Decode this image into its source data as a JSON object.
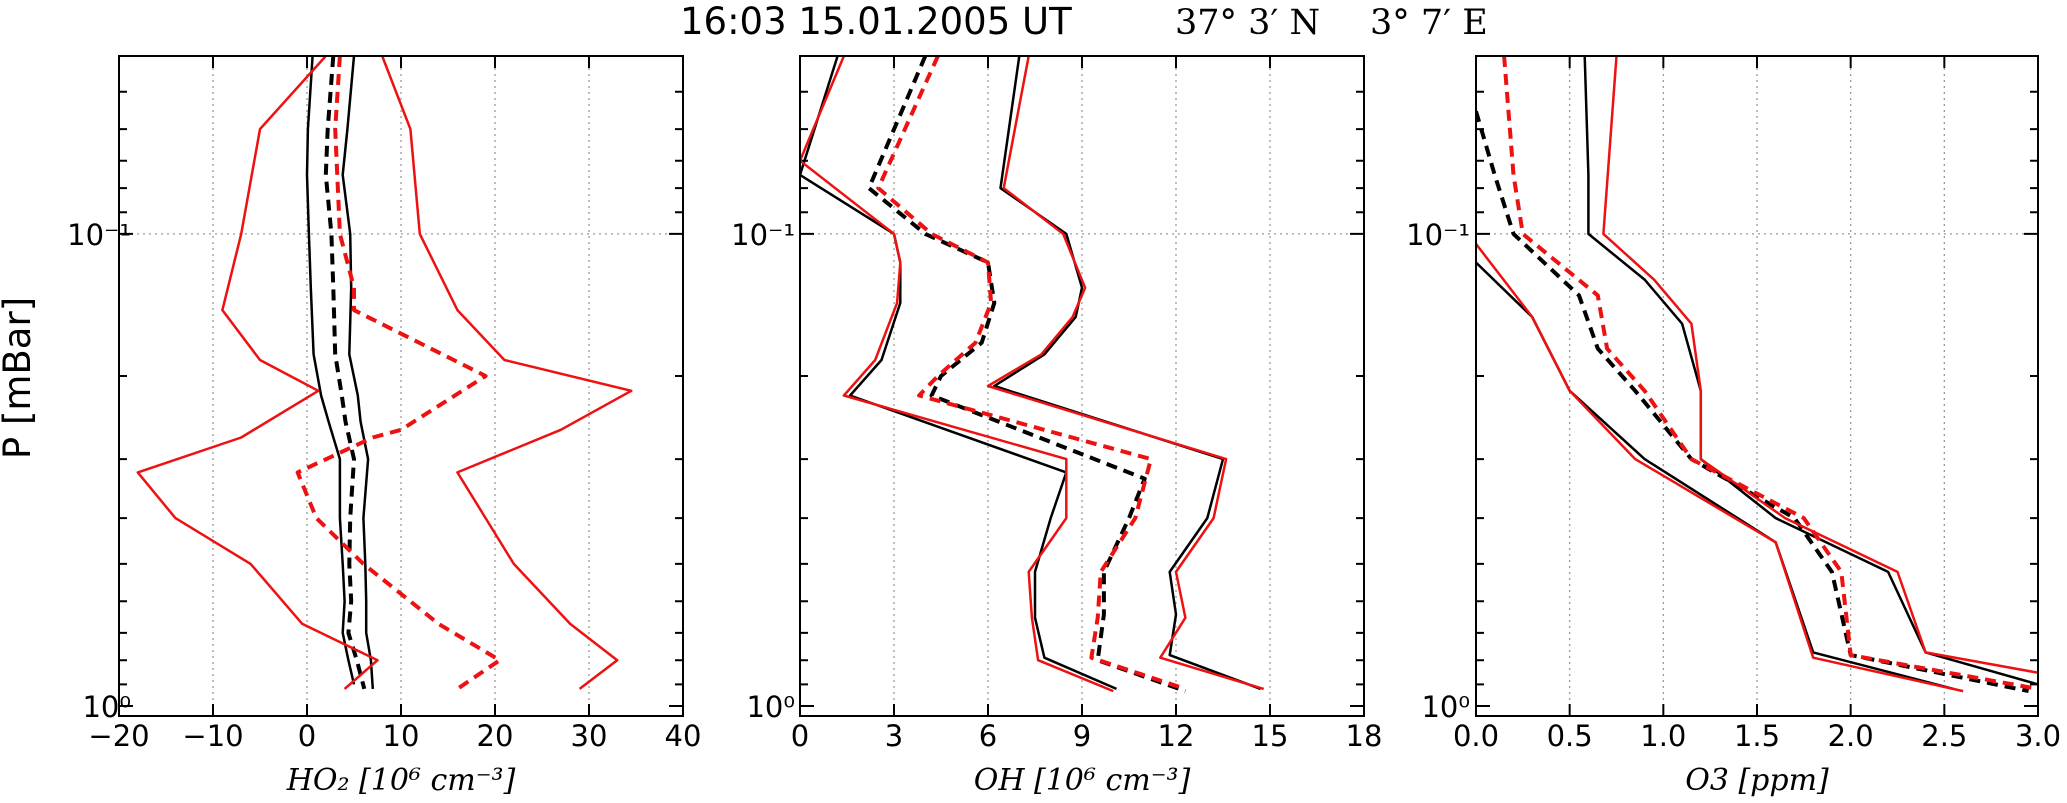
{
  "figure": {
    "title_text": "16:03 15.01.2005 UT",
    "title_lat": "37° 3′ N",
    "title_lon": "3° 7′ E",
    "ylabel": "P [mBar]"
  },
  "colors": {
    "model_a": "#000000",
    "model_b": "#ee1111"
  },
  "chart_data": [
    {
      "type": "line",
      "panel": "HO2",
      "xlabel": "HO₂  [10⁶ cm⁻³]",
      "xlim": [
        -20,
        40
      ],
      "x_ticks": [
        -20,
        -10,
        0,
        10,
        20,
        30,
        40
      ],
      "ylim": [
        1.05,
        0.042
      ],
      "y_scale": "log",
      "y_tick_labels": [
        "10⁻¹",
        "10⁰"
      ],
      "grid": true,
      "series": [
        {
          "color": "black",
          "dash": false,
          "points": [
            [
              0.6,
              0.042
            ],
            [
              0.1,
              0.06
            ],
            [
              0,
              0.075
            ],
            [
              0.2,
              0.1
            ],
            [
              0.4,
              0.13
            ],
            [
              0.7,
              0.18
            ],
            [
              1.5,
              0.22
            ],
            [
              2.3,
              0.25
            ],
            [
              3.5,
              0.3
            ],
            [
              3.5,
              0.4
            ],
            [
              3.8,
              0.5
            ],
            [
              4,
              0.6
            ],
            [
              3.8,
              0.7
            ],
            [
              4.4,
              0.8
            ],
            [
              5,
              0.9
            ]
          ]
        },
        {
          "color": "black",
          "dash": true,
          "points": [
            [
              2.8,
              0.042
            ],
            [
              2.2,
              0.06
            ],
            [
              2,
              0.075
            ],
            [
              2.6,
              0.1
            ],
            [
              2.8,
              0.13
            ],
            [
              3,
              0.18
            ],
            [
              3.7,
              0.22
            ],
            [
              4.1,
              0.25
            ],
            [
              5,
              0.3
            ],
            [
              4.6,
              0.4
            ],
            [
              4.5,
              0.5
            ],
            [
              4.7,
              0.6
            ],
            [
              4.4,
              0.7
            ],
            [
              5.3,
              0.8
            ],
            [
              6.1,
              0.92
            ]
          ]
        },
        {
          "color": "black",
          "dash": false,
          "points": [
            [
              5,
              0.042
            ],
            [
              4.3,
              0.06
            ],
            [
              3.8,
              0.075
            ],
            [
              4.6,
              0.1
            ],
            [
              4.7,
              0.13
            ],
            [
              4.5,
              0.18
            ],
            [
              5.4,
              0.22
            ],
            [
              5.7,
              0.25
            ],
            [
              6.5,
              0.3
            ],
            [
              6,
              0.4
            ],
            [
              6.2,
              0.5
            ],
            [
              6.3,
              0.6
            ],
            [
              6.3,
              0.7
            ],
            [
              6.8,
              0.8
            ],
            [
              7,
              0.92
            ]
          ]
        },
        {
          "color": "red",
          "dash": false,
          "points": [
            [
              2,
              0.042
            ],
            [
              -5,
              0.06
            ],
            [
              -7,
              0.1
            ],
            [
              -9,
              0.145
            ],
            [
              -5,
              0.185
            ],
            [
              1.2,
              0.215
            ],
            [
              -7,
              0.27
            ],
            [
              -18,
              0.32
            ],
            [
              -14,
              0.4
            ],
            [
              -6,
              0.5
            ],
            [
              -0.5,
              0.67
            ],
            [
              7.5,
              0.8
            ],
            [
              4,
              0.92
            ]
          ]
        },
        {
          "color": "red",
          "dash": true,
          "points": [
            [
              3.5,
              0.042
            ],
            [
              3,
              0.06
            ],
            [
              3.5,
              0.1
            ],
            [
              5,
              0.13
            ],
            [
              5,
              0.145
            ],
            [
              19,
              0.2
            ],
            [
              10,
              0.26
            ],
            [
              7,
              0.27
            ],
            [
              -1,
              0.32
            ],
            [
              1,
              0.4
            ],
            [
              6,
              0.5
            ],
            [
              14,
              0.67
            ],
            [
              20.5,
              0.8
            ],
            [
              16,
              0.92
            ]
          ]
        },
        {
          "color": "red",
          "dash": false,
          "points": [
            [
              8,
              0.042
            ],
            [
              11,
              0.06
            ],
            [
              12,
              0.1
            ],
            [
              16,
              0.145
            ],
            [
              21,
              0.185
            ],
            [
              34.5,
              0.215
            ],
            [
              27,
              0.26
            ],
            [
              16,
              0.32
            ],
            [
              19,
              0.4
            ],
            [
              22,
              0.5
            ],
            [
              28,
              0.67
            ],
            [
              33,
              0.8
            ],
            [
              29,
              0.92
            ]
          ]
        }
      ]
    },
    {
      "type": "line",
      "panel": "OH",
      "xlabel": "OH [10⁶ cm⁻³]",
      "xlim": [
        0,
        18
      ],
      "x_ticks": [
        0,
        3,
        6,
        9,
        12,
        15,
        18
      ],
      "ylim": [
        1.05,
        0.042
      ],
      "y_scale": "log",
      "y_tick_labels": [
        "10⁻¹",
        "10⁰"
      ],
      "grid": true,
      "series": [
        {
          "color": "black",
          "dash": false,
          "points": [
            [
              1.2,
              0.042
            ],
            [
              0,
              0.075
            ],
            [
              3,
              0.1
            ],
            [
              3.2,
              0.115
            ],
            [
              3.2,
              0.14
            ],
            [
              2.6,
              0.185
            ],
            [
              1.6,
              0.22
            ],
            [
              8.5,
              0.32
            ],
            [
              8,
              0.4
            ],
            [
              7.5,
              0.52
            ],
            [
              7.5,
              0.65
            ],
            [
              7.8,
              0.79
            ],
            [
              10.1,
              0.92
            ]
          ]
        },
        {
          "color": "black",
          "dash": true,
          "points": [
            [
              4,
              0.042
            ],
            [
              2.2,
              0.08
            ],
            [
              4,
              0.1
            ],
            [
              6,
              0.115
            ],
            [
              6.2,
              0.14
            ],
            [
              5.8,
              0.17
            ],
            [
              4.5,
              0.2
            ],
            [
              4.2,
              0.22
            ],
            [
              11,
              0.33
            ],
            [
              10.5,
              0.4
            ],
            [
              9.7,
              0.52
            ],
            [
              9.7,
              0.64
            ],
            [
              9.5,
              0.8
            ],
            [
              12.3,
              0.93
            ]
          ]
        },
        {
          "color": "black",
          "dash": false,
          "points": [
            [
              7,
              0.042
            ],
            [
              6.4,
              0.08
            ],
            [
              8.5,
              0.1
            ],
            [
              9,
              0.13
            ],
            [
              8.8,
              0.15
            ],
            [
              7.8,
              0.18
            ],
            [
              6.2,
              0.21
            ],
            [
              13.5,
              0.3
            ],
            [
              13,
              0.4
            ],
            [
              11.8,
              0.52
            ],
            [
              12,
              0.64
            ],
            [
              11.8,
              0.78
            ],
            [
              14.7,
              0.92
            ]
          ]
        },
        {
          "color": "red",
          "dash": false,
          "points": [
            [
              1.4,
              0.042
            ],
            [
              0,
              0.07
            ],
            [
              3,
              0.1
            ],
            [
              3.2,
              0.115
            ],
            [
              3.1,
              0.14
            ],
            [
              2.4,
              0.185
            ],
            [
              1.4,
              0.22
            ],
            [
              8.5,
              0.3
            ],
            [
              8.5,
              0.4
            ],
            [
              7.3,
              0.52
            ],
            [
              7.4,
              0.65
            ],
            [
              7.6,
              0.8
            ],
            [
              10,
              0.93
            ]
          ]
        },
        {
          "color": "red",
          "dash": true,
          "points": [
            [
              4.4,
              0.042
            ],
            [
              2.5,
              0.08
            ],
            [
              4.2,
              0.1
            ],
            [
              6,
              0.115
            ],
            [
              6.1,
              0.14
            ],
            [
              5.6,
              0.17
            ],
            [
              4.4,
              0.2
            ],
            [
              3.8,
              0.22
            ],
            [
              11.2,
              0.3
            ],
            [
              10.7,
              0.4
            ],
            [
              9.6,
              0.52
            ],
            [
              9.5,
              0.65
            ],
            [
              9.3,
              0.79
            ],
            [
              12.3,
              0.92
            ]
          ]
        },
        {
          "color": "red",
          "dash": false,
          "points": [
            [
              7.3,
              0.042
            ],
            [
              6.5,
              0.08
            ],
            [
              8.4,
              0.1
            ],
            [
              9.1,
              0.13
            ],
            [
              8.7,
              0.15
            ],
            [
              7.7,
              0.18
            ],
            [
              6,
              0.21
            ],
            [
              13.6,
              0.3
            ],
            [
              13.2,
              0.4
            ],
            [
              12,
              0.52
            ],
            [
              12.3,
              0.65
            ],
            [
              11.5,
              0.79
            ],
            [
              14.8,
              0.92
            ]
          ]
        }
      ]
    },
    {
      "type": "line",
      "panel": "O3",
      "xlabel": "O3 [ppm]",
      "xlim": [
        0.0,
        3.0
      ],
      "x_ticks": [
        "0.0",
        "0.5",
        "1.0",
        "1.5",
        "2.0",
        "2.5",
        "3.0"
      ],
      "ylim": [
        1.05,
        0.042
      ],
      "y_scale": "log",
      "y_tick_labels": [
        "10⁻¹",
        "10⁰"
      ],
      "grid": true,
      "series": [
        {
          "color": "black",
          "dash": false,
          "points": [
            [
              0.58,
              0.042
            ],
            [
              0.6,
              0.075
            ],
            [
              0.6,
              0.1
            ],
            [
              0.9,
              0.125
            ],
            [
              1.1,
              0.155
            ],
            [
              1.2,
              0.215
            ],
            [
              1.2,
              0.3
            ],
            [
              1.6,
              0.4
            ],
            [
              2.2,
              0.52
            ],
            [
              2.4,
              0.77
            ],
            [
              3,
              0.9
            ]
          ]
        },
        {
          "color": "black",
          "dash": true,
          "points": [
            [
              0,
              0.055
            ],
            [
              0.1,
              0.075
            ],
            [
              0.2,
              0.1
            ],
            [
              0.55,
              0.135
            ],
            [
              0.65,
              0.175
            ],
            [
              0.85,
              0.215
            ],
            [
              1.15,
              0.3
            ],
            [
              1.7,
              0.4
            ],
            [
              1.9,
              0.52
            ],
            [
              2,
              0.78
            ],
            [
              2.95,
              0.93
            ]
          ]
        },
        {
          "color": "black",
          "dash": false,
          "points": [
            [
              0,
              0.115
            ],
            [
              0.3,
              0.15
            ],
            [
              0.5,
              0.215
            ],
            [
              0.9,
              0.3
            ],
            [
              1.6,
              0.45
            ],
            [
              1.8,
              0.77
            ],
            [
              2.55,
              0.92
            ]
          ]
        },
        {
          "color": "red",
          "dash": false,
          "points": [
            [
              0.75,
              0.042
            ],
            [
              0.68,
              0.1
            ],
            [
              0.95,
              0.125
            ],
            [
              1.15,
              0.155
            ],
            [
              1.2,
              0.215
            ],
            [
              1.2,
              0.3
            ],
            [
              1.65,
              0.4
            ],
            [
              2.25,
              0.52
            ],
            [
              2.4,
              0.77
            ],
            [
              3,
              0.85
            ]
          ]
        },
        {
          "color": "red",
          "dash": true,
          "points": [
            [
              0.15,
              0.042
            ],
            [
              0.2,
              0.075
            ],
            [
              0.25,
              0.1
            ],
            [
              0.65,
              0.135
            ],
            [
              0.7,
              0.175
            ],
            [
              0.9,
              0.215
            ],
            [
              1.15,
              0.3
            ],
            [
              1.75,
              0.4
            ],
            [
              1.95,
              0.52
            ],
            [
              2,
              0.78
            ],
            [
              3,
              0.92
            ]
          ]
        },
        {
          "color": "red",
          "dash": false,
          "points": [
            [
              0,
              0.105
            ],
            [
              0.3,
              0.15
            ],
            [
              0.5,
              0.215
            ],
            [
              0.85,
              0.3
            ],
            [
              1.6,
              0.45
            ],
            [
              1.8,
              0.79
            ],
            [
              2.6,
              0.93
            ]
          ]
        }
      ]
    }
  ]
}
